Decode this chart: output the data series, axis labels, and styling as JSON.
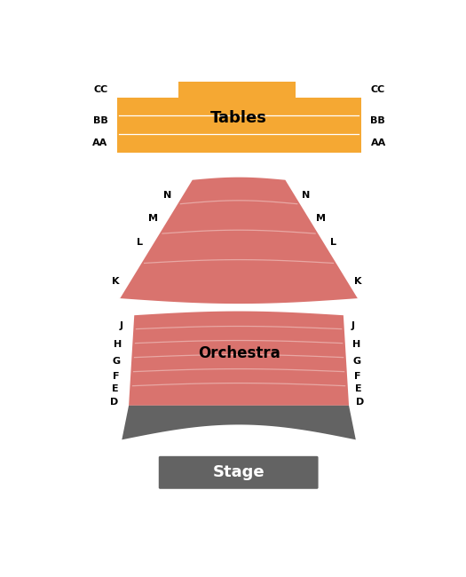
{
  "bg_color": "#ffffff",
  "stage_color": "#636363",
  "stage_label": "Stage",
  "stage_label_color": "#ffffff",
  "tables_color": "#f5a833",
  "tables_label": "Tables",
  "tables_label_color": "#000000",
  "orchestra_color": "#d9736e",
  "orchestra_label": "Orchestra",
  "orchestra_label_color": "#000000",
  "aisle_color": "#ffffff",
  "row_line_color": "#e8a8a4",
  "dark_section_color": "#636363",
  "upper_rows": [
    "N",
    "M",
    "L",
    "K"
  ],
  "lower_rows": [
    "J",
    "H",
    "G",
    "F",
    "E",
    "D"
  ],
  "tables_rows": [
    "CC",
    "BB",
    "AA"
  ]
}
